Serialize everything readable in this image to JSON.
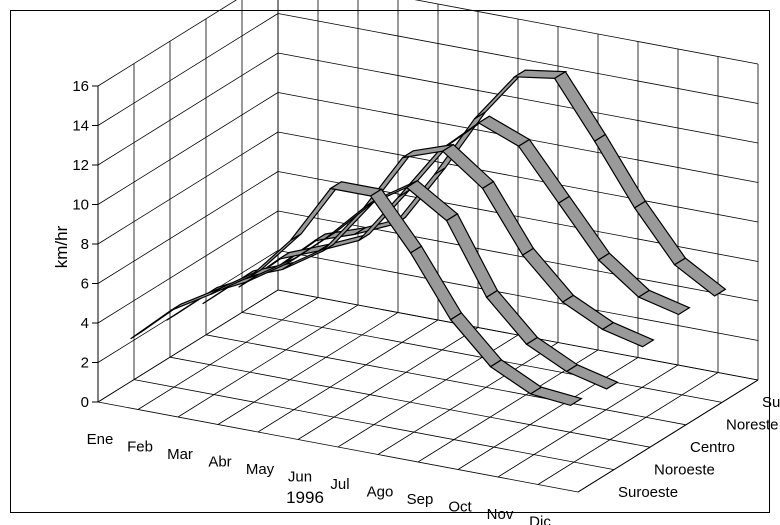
{
  "chart_data": {
    "type": "3d-ribbon-line",
    "title": "",
    "xlabel": "1996",
    "ylabel": "km/hr",
    "ylim": [
      0,
      16
    ],
    "yticks": [
      0,
      2,
      4,
      6,
      8,
      10,
      12,
      14,
      16
    ],
    "categories": [
      "Ene",
      "Feb",
      "Mar",
      "Abr",
      "May",
      "Jun",
      "Jul",
      "Ago",
      "Sep",
      "Oct",
      "Nov",
      "Dic"
    ],
    "series": [
      {
        "name": "Suroeste",
        "values": [
          3.0,
          4.8,
          6.0,
          7.3,
          9.5,
          12.5,
          12.5,
          10.0,
          7.0,
          5.0,
          4.0,
          3.8
        ]
      },
      {
        "name": "Noroeste",
        "values": [
          2.8,
          4.5,
          5.5,
          6.8,
          8.5,
          10.5,
          11.8,
          10.5,
          7.0,
          5.0,
          4.0,
          3.5
        ]
      },
      {
        "name": "Centro",
        "values": [
          2.5,
          4.2,
          5.0,
          6.3,
          8.8,
          11.8,
          12.5,
          11.0,
          8.0,
          6.0,
          5.0,
          4.5
        ]
      },
      {
        "name": "Noreste",
        "values": [
          2.2,
          4.0,
          4.8,
          5.7,
          8.3,
          11.0,
          12.8,
          12.0,
          9.5,
          7.0,
          5.5,
          5.0
        ]
      },
      {
        "name": "Sureste",
        "values": [
          2.0,
          3.8,
          4.5,
          5.4,
          8.3,
          11.5,
          14.0,
          14.3,
          11.5,
          8.5,
          6.0,
          4.8
        ]
      }
    ],
    "grid": true,
    "colors": {
      "ribbon_fill": "#9a9a9a",
      "ribbon_stroke": "#000000",
      "grid": "#000000"
    }
  }
}
